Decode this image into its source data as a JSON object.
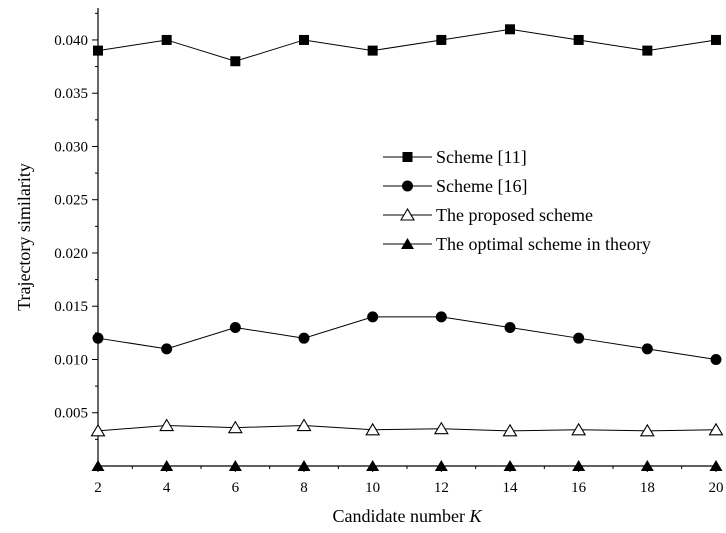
{
  "chart_data": {
    "type": "line",
    "xlabel": "Candidate number ",
    "xlabel_var": "K",
    "ylabel": "Trajectory similarity",
    "xlim": [
      2,
      20
    ],
    "ylim": [
      0,
      0.043
    ],
    "x": [
      2,
      4,
      6,
      8,
      10,
      12,
      14,
      16,
      18,
      20
    ],
    "x_ticks": [
      "2",
      "4",
      "6",
      "8",
      "10",
      "12",
      "14",
      "16",
      "18",
      "20"
    ],
    "y_ticks": [
      {
        "value": 0.005,
        "label": "0.005"
      },
      {
        "value": 0.01,
        "label": "0.010"
      },
      {
        "value": 0.015,
        "label": "0.015"
      },
      {
        "value": 0.02,
        "label": "0.020"
      },
      {
        "value": 0.025,
        "label": "0.025"
      },
      {
        "value": 0.03,
        "label": "0.030"
      },
      {
        "value": 0.035,
        "label": "0.035"
      },
      {
        "value": 0.04,
        "label": "0.040"
      }
    ],
    "grid": false,
    "legend_position": "center-right",
    "series": [
      {
        "name": "Scheme [11]",
        "marker": "square-filled",
        "values": [
          0.039,
          0.04,
          0.038,
          0.04,
          0.039,
          0.04,
          0.041,
          0.04,
          0.039,
          0.04
        ]
      },
      {
        "name": "Scheme [16]",
        "marker": "circle-filled",
        "values": [
          0.012,
          0.011,
          0.013,
          0.012,
          0.014,
          0.014,
          0.013,
          0.012,
          0.011,
          0.01
        ]
      },
      {
        "name": "The proposed scheme",
        "marker": "triangle-open",
        "values": [
          0.0033,
          0.0038,
          0.0036,
          0.0038,
          0.0034,
          0.0035,
          0.0033,
          0.0034,
          0.0033,
          0.0034
        ]
      },
      {
        "name": "The optimal scheme in theory",
        "marker": "triangle-filled",
        "values": [
          0,
          0,
          0,
          0,
          0,
          0,
          0,
          0,
          0,
          0
        ]
      }
    ],
    "colors": {
      "line": "#000000",
      "background": "#ffffff"
    }
  }
}
